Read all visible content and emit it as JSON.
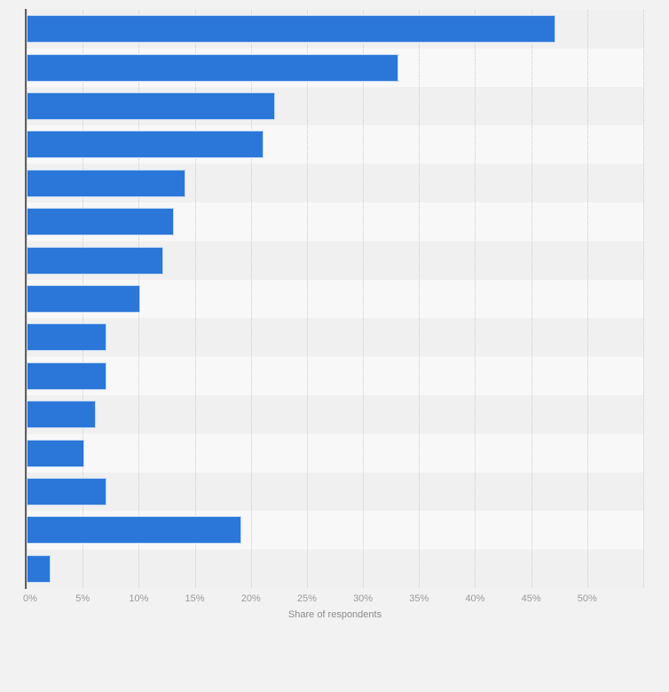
{
  "chart_data": {
    "type": "bar",
    "orientation": "horizontal",
    "title": "",
    "xlabel": "Share of respondents",
    "x_ticks": [
      "0%",
      "5%",
      "10%",
      "15%",
      "20%",
      "25%",
      "30%",
      "35%",
      "40%",
      "45%",
      "50%"
    ],
    "x_tick_step_percent": 5,
    "xlim": [
      0,
      55
    ],
    "grid": "vertical dotted gridlines every 5%, extra unlabeled gridline at 55%",
    "legend": "none",
    "bar_count": 15,
    "category_labels_visible": false,
    "values": [
      47,
      33,
      22,
      21,
      14,
      13,
      12,
      10,
      7,
      7,
      6,
      5,
      7,
      19,
      2
    ],
    "unit": "%"
  },
  "colors": {
    "page_bg": "#f2f2f2",
    "bar": "#2b77d9",
    "bar_border": "rgba(255,255,255,0.7)",
    "stripe_dark": "#f0f0f1",
    "stripe_light": "#f8f8f9",
    "axis_line": "#5f5f5f",
    "gridline": "#cdcdcd",
    "tick_text": "#9a9a9a",
    "axis_title_text": "#8b8b8b"
  }
}
